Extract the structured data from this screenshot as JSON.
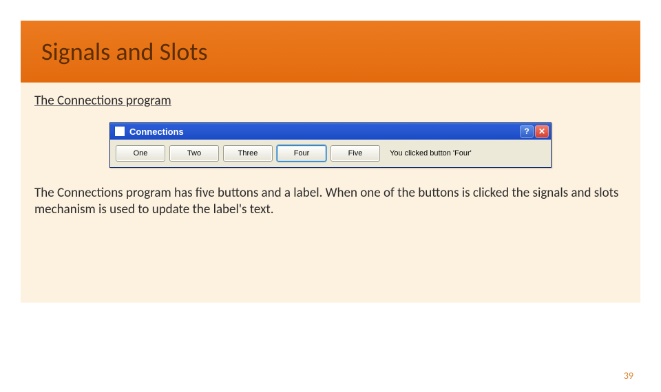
{
  "header": {
    "title": "Signals and Slots"
  },
  "subtitle": "The Connections program",
  "window": {
    "title": "Connections",
    "help_symbol": "?",
    "close_symbol": "✕",
    "buttons": [
      "One",
      "Two",
      "Three",
      "Four",
      "Five"
    ],
    "focused_index": 3,
    "status_label": "You clicked button 'Four'"
  },
  "body_text": "The Connections program has five buttons and a label. When one of the buttons is clicked the signals and slots mechanism is used to update the label's text.",
  "page_number": "39"
}
